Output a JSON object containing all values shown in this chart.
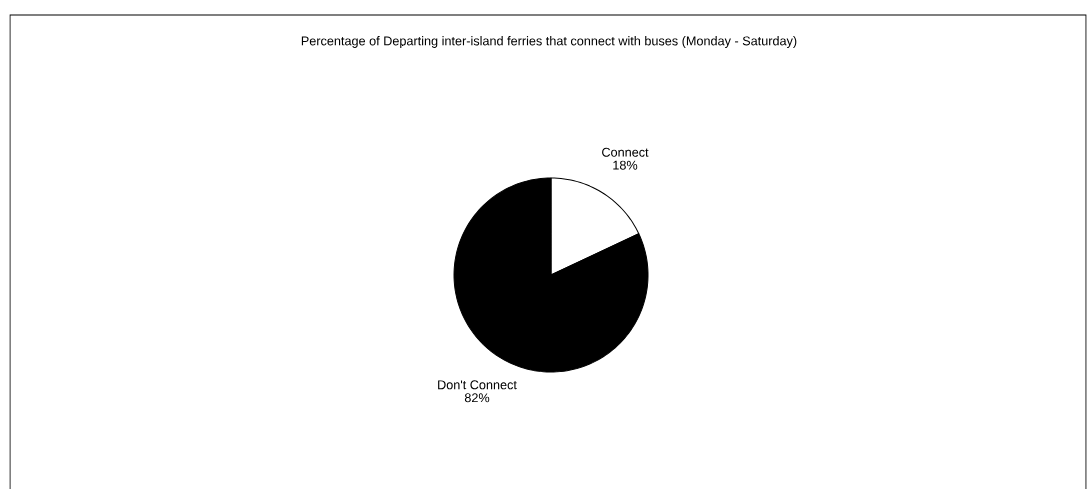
{
  "chart_data": {
    "type": "pie",
    "title": "Percentage of Departing inter-island ferries that connect with buses (Monday - Saturday)",
    "categories": [
      "Connect",
      "Don't Connect"
    ],
    "values": [
      18,
      82
    ],
    "colors": [
      "#ffffff",
      "#000000"
    ],
    "value_labels": [
      "18%",
      "82%"
    ]
  }
}
